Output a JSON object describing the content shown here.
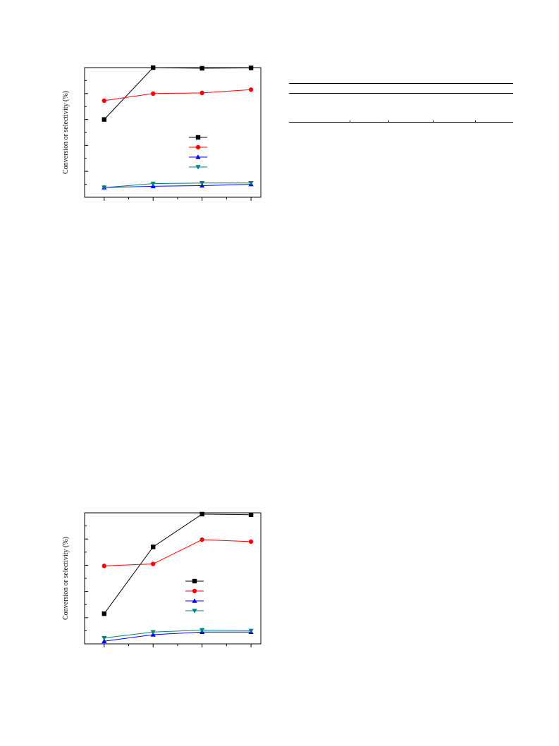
{
  "figures": [
    {
      "ylabel": "Conversion or selectivity (%)",
      "chart_data": {
        "type": "line",
        "ylabel": "Conversion or selectivity (%)",
        "ylim": [
          0,
          100
        ],
        "x": [
          1,
          2,
          3,
          4
        ],
        "xlim": [
          0.6,
          4.2
        ],
        "yticks": [
          0,
          20,
          40,
          60,
          80,
          100
        ],
        "grid": false,
        "legend_placement": "center-right",
        "series": [
          {
            "marker": "square",
            "color": "#000000",
            "values": [
              60.0,
              100.0,
              99.5,
              99.8
            ]
          },
          {
            "marker": "circle",
            "color": "#ff0000",
            "values": [
              74.5,
              80.0,
              80.5,
              83.0
            ]
          },
          {
            "marker": "triangle-up",
            "color": "#0000ff",
            "values": [
              7.5,
              8.5,
              9.0,
              10.0
            ]
          },
          {
            "marker": "triangle-down",
            "color": "#008080",
            "values": [
              7.5,
              10.5,
              11.0,
              11.0
            ]
          }
        ]
      }
    },
    {
      "ylabel": "Conversion or selectivity (%)",
      "chart_data": {
        "type": "line",
        "ylabel": "Conversion or selectivity (%)",
        "ylim": [
          0,
          100
        ],
        "x": [
          1,
          2,
          3,
          4
        ],
        "xlim": [
          0.6,
          4.2
        ],
        "yticks": [
          0,
          20,
          40,
          60,
          80,
          100
        ],
        "grid": false,
        "legend_placement": "center-right",
        "series": [
          {
            "marker": "square",
            "color": "#000000",
            "values": [
              23.0,
              74.0,
              99.0,
              98.5
            ]
          },
          {
            "marker": "circle",
            "color": "#ff0000",
            "values": [
              59.5,
              61.0,
              79.5,
              78.0
            ]
          },
          {
            "marker": "triangle-up",
            "color": "#0000ff",
            "values": [
              2.0,
              7.0,
              9.0,
              9.0
            ]
          },
          {
            "marker": "triangle-down",
            "color": "#008080",
            "values": [
              4.5,
              9.0,
              10.5,
              10.0
            ]
          }
        ]
      }
    }
  ]
}
